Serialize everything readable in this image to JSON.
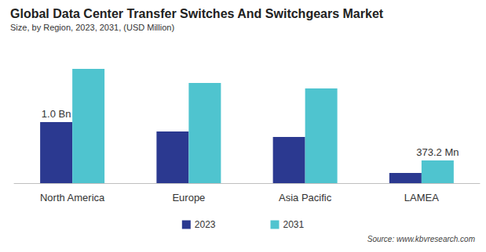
{
  "chart_data": {
    "type": "bar",
    "title": "Global Data Center Transfer Switches And Switchgears Market",
    "subtitle": "Size, by Region, 2023, 2031, (USD Million)",
    "categories": [
      "North America",
      "Europe",
      "Asia Pacific",
      "LAMEA"
    ],
    "series": [
      {
        "name": "2023",
        "color": "#2b3990",
        "values": [
          1000,
          846,
          756,
          167
        ],
        "value_labels": [
          "1.0 Bn",
          null,
          null,
          null
        ]
      },
      {
        "name": "2031",
        "color": "#4fc4cf",
        "values": [
          1872,
          1641,
          1551,
          373.2
        ],
        "value_labels": [
          null,
          null,
          null,
          "373.2 Mn"
        ]
      }
    ],
    "ylim": [
      0,
      2000
    ],
    "grid": false,
    "tick_labels": "x",
    "data_labels": true,
    "legend": "bottom",
    "annotations": [
      "Source: www.kbvresearch.com"
    ]
  }
}
